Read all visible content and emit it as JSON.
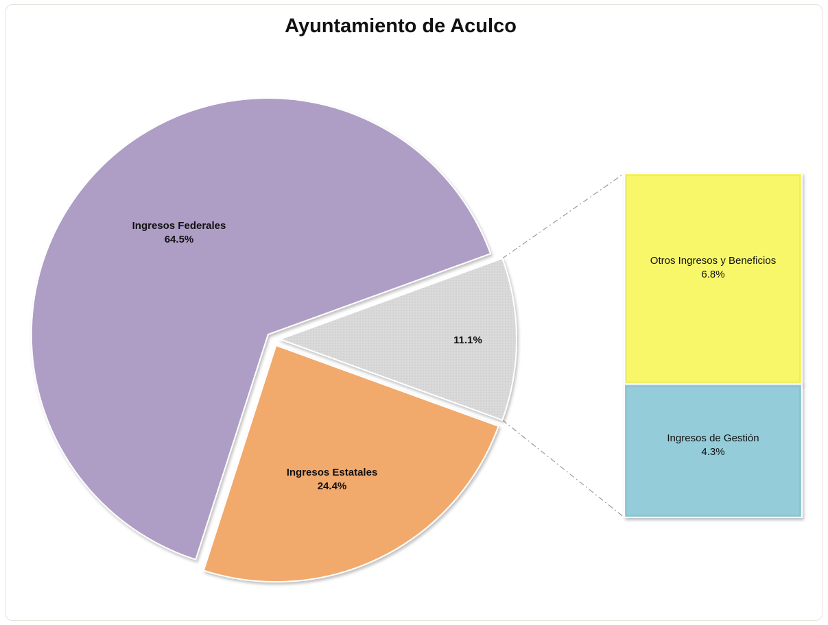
{
  "chart_data": {
    "type": "bar-of-pie",
    "title": "Ayuntamiento de Aculco",
    "pie": [
      {
        "label": "Ingresos Federales",
        "percent_text": "64.5%",
        "value": 64.5,
        "color": "#ae9dc5"
      },
      {
        "label": "Ingresos Estatales",
        "percent_text": "24.4%",
        "value": 24.4,
        "color": "#f2a96c"
      },
      {
        "label": "",
        "percent_text": "11.1%",
        "value": 11.1,
        "color": "#d9d9d9"
      }
    ],
    "stack": [
      {
        "label": "Otros Ingresos y Beneficios",
        "percent_text": "6.8%",
        "value": 6.8,
        "color": "#f8f76a"
      },
      {
        "label": "Ingresos de Gestión",
        "percent_text": "4.3%",
        "value": 4.3,
        "color": "#94ccd9"
      }
    ]
  }
}
